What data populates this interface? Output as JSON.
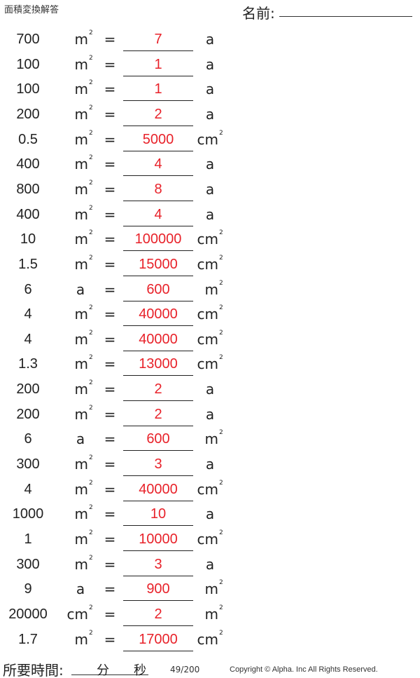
{
  "header": {
    "title": "面積変換解答",
    "name_label": "名前:"
  },
  "rows": [
    {
      "value": "700",
      "unit": "m",
      "unit_sup": "2",
      "answer": "7",
      "result_unit": "a",
      "result_sup": ""
    },
    {
      "value": "100",
      "unit": "m",
      "unit_sup": "2",
      "answer": "1",
      "result_unit": "a",
      "result_sup": ""
    },
    {
      "value": "100",
      "unit": "m",
      "unit_sup": "2",
      "answer": "1",
      "result_unit": "a",
      "result_sup": ""
    },
    {
      "value": "200",
      "unit": "m",
      "unit_sup": "2",
      "answer": "2",
      "result_unit": "a",
      "result_sup": ""
    },
    {
      "value": "0.5",
      "unit": "m",
      "unit_sup": "2",
      "answer": "5000",
      "result_unit": "cm",
      "result_sup": "2"
    },
    {
      "value": "400",
      "unit": "m",
      "unit_sup": "2",
      "answer": "4",
      "result_unit": "a",
      "result_sup": ""
    },
    {
      "value": "800",
      "unit": "m",
      "unit_sup": "2",
      "answer": "8",
      "result_unit": "a",
      "result_sup": ""
    },
    {
      "value": "400",
      "unit": "m",
      "unit_sup": "2",
      "answer": "4",
      "result_unit": "a",
      "result_sup": ""
    },
    {
      "value": "10",
      "unit": "m",
      "unit_sup": "2",
      "answer": "100000",
      "result_unit": "cm",
      "result_sup": "2"
    },
    {
      "value": "1.5",
      "unit": "m",
      "unit_sup": "2",
      "answer": "15000",
      "result_unit": "cm",
      "result_sup": "2"
    },
    {
      "value": "6",
      "unit": "a",
      "unit_sup": "",
      "answer": "600",
      "result_unit": "m",
      "result_sup": "2"
    },
    {
      "value": "4",
      "unit": "m",
      "unit_sup": "2",
      "answer": "40000",
      "result_unit": "cm",
      "result_sup": "2"
    },
    {
      "value": "4",
      "unit": "m",
      "unit_sup": "2",
      "answer": "40000",
      "result_unit": "cm",
      "result_sup": "2"
    },
    {
      "value": "1.3",
      "unit": "m",
      "unit_sup": "2",
      "answer": "13000",
      "result_unit": "cm",
      "result_sup": "2"
    },
    {
      "value": "200",
      "unit": "m",
      "unit_sup": "2",
      "answer": "2",
      "result_unit": "a",
      "result_sup": ""
    },
    {
      "value": "200",
      "unit": "m",
      "unit_sup": "2",
      "answer": "2",
      "result_unit": "a",
      "result_sup": ""
    },
    {
      "value": "6",
      "unit": "a",
      "unit_sup": "",
      "answer": "600",
      "result_unit": "m",
      "result_sup": "2"
    },
    {
      "value": "300",
      "unit": "m",
      "unit_sup": "2",
      "answer": "3",
      "result_unit": "a",
      "result_sup": ""
    },
    {
      "value": "4",
      "unit": "m",
      "unit_sup": "2",
      "answer": "40000",
      "result_unit": "cm",
      "result_sup": "2"
    },
    {
      "value": "1000",
      "unit": "m",
      "unit_sup": "2",
      "answer": "10",
      "result_unit": "a",
      "result_sup": ""
    },
    {
      "value": "1",
      "unit": "m",
      "unit_sup": "2",
      "answer": "10000",
      "result_unit": "cm",
      "result_sup": "2"
    },
    {
      "value": "300",
      "unit": "m",
      "unit_sup": "2",
      "answer": "3",
      "result_unit": "a",
      "result_sup": ""
    },
    {
      "value": "9",
      "unit": "a",
      "unit_sup": "",
      "answer": "900",
      "result_unit": "m",
      "result_sup": "2"
    },
    {
      "value": "20000",
      "unit": "cm",
      "unit_sup": "2",
      "answer": "2",
      "result_unit": "m",
      "result_sup": "2"
    },
    {
      "value": "1.7",
      "unit": "m",
      "unit_sup": "2",
      "answer": "17000",
      "result_unit": "cm",
      "result_sup": "2"
    }
  ],
  "equals": "=",
  "footer": {
    "time_label": "所要時間:",
    "minutes_label": "分",
    "seconds_label": "秒",
    "page": "49/200",
    "copyright": "Copyright © Alpha. Inc All Rights Reserved."
  },
  "colors": {
    "answer": "#e8222a"
  }
}
